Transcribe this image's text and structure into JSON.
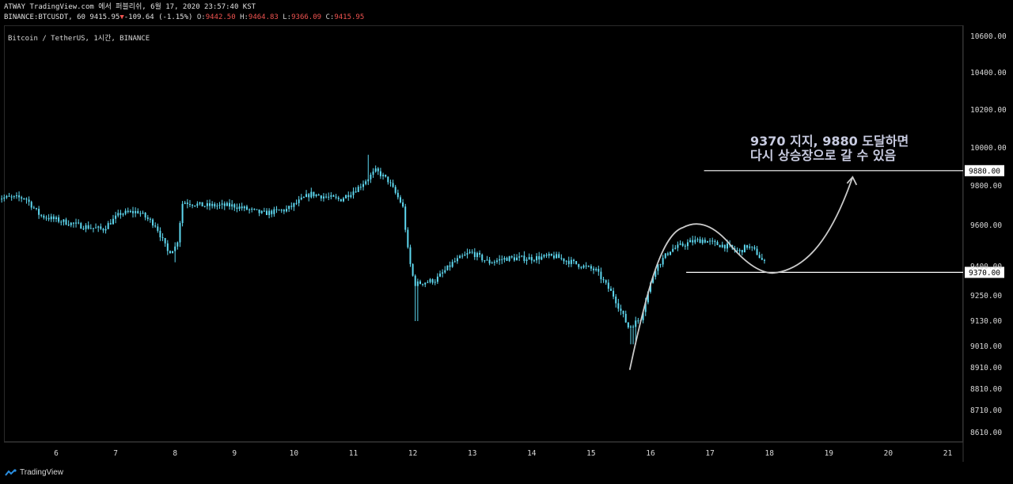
{
  "header": {
    "line1": "ATWAY TradingView.com 에서 퍼블리쉬, 6월 17, 2020 23:57:40 KST",
    "symbol_interval": "BINANCE:BTCUSDT, 60",
    "last": "9415.95",
    "change_arrow": "▼",
    "change": "-109.64 (-1.15%)",
    "o_label": "O:",
    "o": "9442.50",
    "h_label": "H:",
    "h": "9464.83",
    "l_label": "L:",
    "l": "9366.09",
    "c_label": "C:",
    "c": "9415.95"
  },
  "legend": {
    "symbol": "Bitcoin / TetherUS, 1시간, BINANCE"
  },
  "annotation": {
    "line1": "9370 지지, 9880 도달하면",
    "line2": "다시 상승장으로 갈 수 있음"
  },
  "footer": {
    "brand": "TradingView"
  },
  "colors": {
    "candle": "#5ed8f0",
    "label_bg": "#ffffff",
    "curve": "#c8c8c8"
  },
  "chart_data": {
    "type": "candlestick",
    "symbol": "BINANCE:BTCUSDT",
    "interval": "1시간",
    "price_axis_ticks": [
      10600,
      10400,
      10200,
      10000,
      9800,
      9600,
      9400,
      9250,
      9130,
      9010,
      8910,
      8810,
      8710,
      8610
    ],
    "price_axis_labels": [
      "10600.00",
      "10400.00",
      "10200.00",
      "10000.00",
      "9800.00",
      "9600.00",
      "9400.00",
      "9250.00",
      "9130.00",
      "9010.00",
      "8910.00",
      "8810.00",
      "8710.00",
      "8610.00"
    ],
    "x_ticks": [
      "6",
      "7",
      "8",
      "9",
      "10",
      "11",
      "12",
      "13",
      "14",
      "15",
      "16",
      "17",
      "18",
      "19",
      "20",
      "21"
    ],
    "horizontal_levels": [
      {
        "price": 9880,
        "label": "9880.00",
        "from_day": 16.9,
        "to_day": 18.0
      },
      {
        "price": 9370,
        "label": "9370.00",
        "from_day": 16.6,
        "to_day": 18.0
      }
    ],
    "series_anchors": [
      {
        "t": 5.0,
        "p": 9740
      },
      {
        "t": 5.5,
        "p": 9740
      },
      {
        "t": 5.75,
        "p": 9650
      },
      {
        "t": 6.0,
        "p": 9630
      },
      {
        "t": 6.4,
        "p": 9600
      },
      {
        "t": 6.8,
        "p": 9580
      },
      {
        "t": 7.1,
        "p": 9660
      },
      {
        "t": 7.4,
        "p": 9670
      },
      {
        "t": 7.7,
        "p": 9600
      },
      {
        "t": 7.9,
        "p": 9470
      },
      {
        "t": 8.05,
        "p": 9500
      },
      {
        "t": 8.15,
        "p": 9720
      },
      {
        "t": 8.5,
        "p": 9700
      },
      {
        "t": 9.0,
        "p": 9700
      },
      {
        "t": 9.5,
        "p": 9660
      },
      {
        "t": 9.9,
        "p": 9680
      },
      {
        "t": 10.3,
        "p": 9760
      },
      {
        "t": 10.8,
        "p": 9730
      },
      {
        "t": 11.1,
        "p": 9790
      },
      {
        "t": 11.4,
        "p": 9880
      },
      {
        "t": 11.6,
        "p": 9830
      },
      {
        "t": 11.85,
        "p": 9700
      },
      {
        "t": 11.95,
        "p": 9450
      },
      {
        "t": 12.05,
        "p": 9310
      },
      {
        "t": 12.4,
        "p": 9330
      },
      {
        "t": 12.7,
        "p": 9420
      },
      {
        "t": 13.0,
        "p": 9470
      },
      {
        "t": 13.3,
        "p": 9420
      },
      {
        "t": 13.6,
        "p": 9440
      },
      {
        "t": 14.0,
        "p": 9440
      },
      {
        "t": 14.4,
        "p": 9450
      },
      {
        "t": 14.8,
        "p": 9410
      },
      {
        "t": 15.1,
        "p": 9380
      },
      {
        "t": 15.4,
        "p": 9250
      },
      {
        "t": 15.65,
        "p": 9100
      },
      {
        "t": 15.85,
        "p": 9140
      },
      {
        "t": 16.1,
        "p": 9390
      },
      {
        "t": 16.35,
        "p": 9480
      },
      {
        "t": 16.7,
        "p": 9520
      },
      {
        "t": 16.9,
        "p": 9530
      },
      {
        "t": 17.1,
        "p": 9510
      },
      {
        "t": 17.3,
        "p": 9500
      },
      {
        "t": 17.5,
        "p": 9470
      },
      {
        "t": 17.65,
        "p": 9500
      },
      {
        "t": 17.8,
        "p": 9470
      },
      {
        "t": 17.93,
        "p": 9416
      }
    ]
  }
}
